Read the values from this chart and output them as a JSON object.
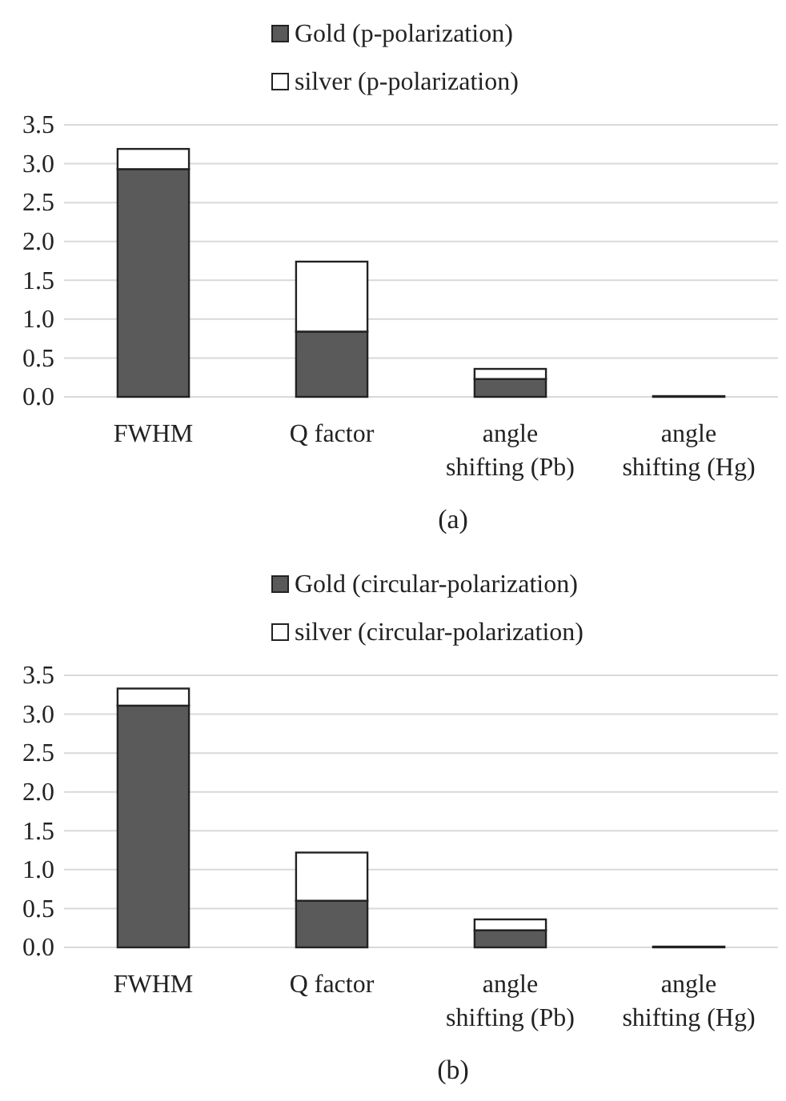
{
  "chart_data": [
    {
      "type": "bar",
      "stacked": true,
      "categories": [
        "FWHM",
        "Q factor",
        "angle shifting (Pb)",
        "angle shifting (Hg)"
      ],
      "series": [
        {
          "name": "Gold (p-polarization)",
          "color": "#5a5a5a",
          "values": [
            2.93,
            0.84,
            0.23,
            0.01
          ]
        },
        {
          "name": "silver (p-polarization)",
          "color": "#ffffff",
          "values": [
            0.26,
            0.9,
            0.13,
            0
          ]
        }
      ],
      "ylim": [
        0,
        3.5
      ],
      "yticks": [
        {
          "value": 0,
          "label": "0.0"
        },
        {
          "value": 0.5,
          "label": "0.5"
        },
        {
          "value": 1,
          "label": "1.0"
        },
        {
          "value": 1.5,
          "label": "1.5"
        },
        {
          "value": 2,
          "label": "2.0"
        },
        {
          "value": 2.5,
          "label": "2.5"
        },
        {
          "value": 3,
          "label": "3.0"
        },
        {
          "value": 3.5,
          "label": "3.5"
        }
      ],
      "grid": "y",
      "legend": "top",
      "annotations": [
        "(a)"
      ]
    },
    {
      "type": "bar",
      "stacked": true,
      "categories": [
        "FWHM",
        "Q factor",
        "angle shifting (Pb)",
        "angle shifting (Hg)"
      ],
      "series": [
        {
          "name": "Gold (circular-polarization)",
          "color": "#5a5a5a",
          "values": [
            3.11,
            0.6,
            0.22,
            0.01
          ]
        },
        {
          "name": "silver (circular-polarization)",
          "color": "#ffffff",
          "values": [
            0.22,
            0.62,
            0.14,
            0
          ]
        }
      ],
      "ylim": [
        0,
        3.5
      ],
      "yticks": [
        {
          "value": 0,
          "label": "0.0"
        },
        {
          "value": 0.5,
          "label": "0.5"
        },
        {
          "value": 1,
          "label": "1.0"
        },
        {
          "value": 1.5,
          "label": "1.5"
        },
        {
          "value": 2,
          "label": "2.0"
        },
        {
          "value": 2.5,
          "label": "2.5"
        },
        {
          "value": 3,
          "label": "3.0"
        },
        {
          "value": 3.5,
          "label": "3.5"
        }
      ],
      "grid": "y",
      "legend": "top",
      "annotations": [
        "(b)"
      ]
    }
  ]
}
